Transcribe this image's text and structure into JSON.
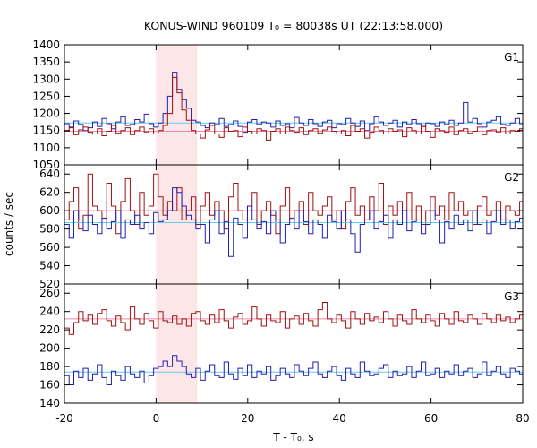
{
  "chart_data": {
    "type": "line",
    "title": "KONUS-WIND 960109 T₀ = 80038s UT (22:13:58.000)",
    "xlabel": "T - T₀, s",
    "ylabel": "counts / sec",
    "xlim": [
      -20,
      80
    ],
    "x_ticks": [
      "-20",
      "0",
      "20",
      "40",
      "60",
      "80"
    ],
    "highlight_interval": [
      0,
      9
    ],
    "bin_width": 1.024,
    "colors": {
      "blue": "#2020b0",
      "red": "#a01010",
      "blue_background": "#66ccee",
      "red_background": "#ee88aa",
      "highlight": "#fde6e8"
    },
    "panels": [
      {
        "label": "G1",
        "ylim": [
          1050,
          1400
        ],
        "y_ticks": [
          1050,
          1100,
          1150,
          1200,
          1250,
          1300,
          1350,
          1400
        ],
        "series": [
          {
            "color": "blue",
            "background": 1172,
            "x0": -20,
            "values": [
              1170,
              1160,
              1178,
              1168,
              1150,
              1158,
              1175,
              1162,
              1185,
              1170,
              1155,
              1175,
              1190,
              1165,
              1168,
              1182,
              1175,
              1198,
              1170,
              1160,
              1172,
              1200,
              1250,
              1320,
              1270,
              1240,
              1215,
              1180,
              1175,
              1165,
              1158,
              1172,
              1168,
              1185,
              1162,
              1168,
              1178,
              1162,
              1145,
              1175,
              1182,
              1168,
              1175,
              1172,
              1160,
              1178,
              1165,
              1170,
              1158,
              1188,
              1172,
              1165,
              1182,
              1170,
              1162,
              1175,
              1180,
              1158,
              1170,
              1168,
              1185,
              1172,
              1162,
              1178,
              1150,
              1170,
              1190,
              1175,
              1165,
              1172,
              1180,
              1160,
              1175,
              1168,
              1182,
              1170,
              1162,
              1172,
              1170,
              1162,
              1175,
              1168,
              1180,
              1165,
              1172,
              1232,
              1175,
              1185,
              1170,
              1160,
              1175,
              1180,
              1190,
              1168,
              1165,
              1172,
              1185,
              1170
            ]
          },
          {
            "color": "red",
            "background": 1148,
            "x0": -20,
            "values": [
              1148,
              1158,
              1138,
              1152,
              1160,
              1145,
              1140,
              1155,
              1135,
              1148,
              1165,
              1142,
              1150,
              1158,
              1138,
              1150,
              1160,
              1146,
              1155,
              1140,
              1150,
              1165,
              1200,
              1305,
              1260,
              1210,
              1180,
              1150,
              1140,
              1128,
              1152,
              1165,
              1140,
              1130,
              1158,
              1148,
              1150,
              1132,
              1160,
              1148,
              1140,
              1155,
              1150,
              1122,
              1148,
              1155,
              1140,
              1160,
              1150,
              1145,
              1158,
              1138,
              1150,
              1155,
              1142,
              1152,
              1160,
              1148,
              1140,
              1150,
              1135,
              1165,
              1148,
              1155,
              1128,
              1145,
              1160,
              1150,
              1140,
              1155,
              1148,
              1152,
              1132,
              1158,
              1150,
              1140,
              1162,
              1148,
              1130,
              1155,
              1150,
              1145,
              1160,
              1138,
              1150,
              1155,
              1142,
              1148,
              1160,
              1138,
              1150,
              1152,
              1146,
              1158,
              1140,
              1150,
              1148,
              1155
            ]
          }
        ]
      },
      {
        "label": "G2",
        "ylim": [
          520,
          650
        ],
        "y_ticks": [
          520,
          540,
          560,
          580,
          600,
          620,
          640
        ],
        "series": [
          {
            "color": "red",
            "background": 600,
            "x0": -20,
            "values": [
              590,
              610,
              625,
              580,
              595,
              640,
              605,
              600,
              590,
              630,
              605,
              575,
              610,
              635,
              600,
              585,
              620,
              595,
              605,
              640,
              615,
              595,
              610,
              600,
              625,
              590,
              600,
              615,
              585,
              605,
              620,
              595,
              610,
              600,
              580,
              615,
              630,
              600,
              590,
              605,
              620,
              585,
              600,
              610,
              595,
              575,
              605,
              625,
              590,
              600,
              610,
              585,
              620,
              600,
              595,
              605,
              615,
              590,
              600,
              580,
              610,
              625,
              595,
              605,
              590,
              615,
              600,
              630,
              585,
              605,
              595,
              610,
              600,
              620,
              590,
              605,
              585,
              600,
              615,
              595,
              605,
              590,
              620,
              600,
              610,
              595,
              600,
              585,
              605,
              615,
              595,
              600,
              610,
              590,
              605,
              600,
              595,
              610
            ]
          },
          {
            "color": "blue",
            "background": 587,
            "x0": -20,
            "values": [
              585,
              570,
              600,
              590,
              578,
              595,
              585,
              575,
              592,
              580,
              588,
              600,
              570,
              590,
              585,
              595,
              580,
              587,
              575,
              598,
              588,
              590,
              600,
              625,
              620,
              605,
              595,
              590,
              580,
              585,
              565,
              590,
              600,
              575,
              588,
              550,
              592,
              585,
              570,
              605,
              590,
              580,
              588,
              575,
              600,
              590,
              565,
              585,
              592,
              580,
              600,
              588,
              575,
              590,
              585,
              570,
              595,
              588,
              580,
              600,
              590,
              575,
              555,
              585,
              590,
              600,
              580,
              588,
              595,
              570,
              590,
              585,
              600,
              578,
              588,
              590,
              575,
              585,
              600,
              590,
              565,
              588,
              580,
              595,
              585,
              590,
              578,
              600,
              585,
              590,
              575,
              588,
              600,
              585,
              590,
              580,
              588,
              592
            ]
          }
        ]
      },
      {
        "label": "G3",
        "ylim": [
          140,
          270
        ],
        "y_ticks": [
          140,
          160,
          180,
          200,
          220,
          240,
          260
        ],
        "series": [
          {
            "color": "red",
            "background": 232,
            "x0": -20,
            "values": [
              222,
              215,
              228,
              240,
              230,
              236,
              226,
              238,
              242,
              230,
              224,
              235,
              228,
              220,
              245,
              232,
              226,
              238,
              230,
              222,
              240,
              230,
              228,
              235,
              226,
              232,
              224,
              238,
              240,
              230,
              226,
              236,
              228,
              242,
              230,
              222,
              234,
              238,
              226,
              230,
              245,
              232,
              224,
              236,
              230,
              228,
              240,
              222,
              232,
              235,
              226,
              238,
              230,
              224,
              242,
              250,
              232,
              228,
              236,
              230,
              222,
              240,
              232,
              226,
              238,
              230,
              234,
              228,
              240,
              232,
              224,
              236,
              230,
              226,
              242,
              232,
              228,
              236,
              230,
              224,
              238,
              232,
              226,
              240,
              230,
              228,
              236,
              232,
              226,
              238,
              232,
              228,
              236,
              230,
              234,
              228,
              232,
              236
            ]
          },
          {
            "color": "blue",
            "background": 174,
            "x0": -20,
            "values": [
              170,
              160,
              175,
              168,
              178,
              165,
              172,
              182,
              168,
              160,
              175,
              170,
              165,
              180,
              172,
              168,
              175,
              162,
              170,
              178,
              180,
              186,
              180,
              192,
              186,
              180,
              172,
              168,
              178,
              165,
              175,
              182,
              170,
              168,
              185,
              172,
              166,
              178,
              170,
              182,
              168,
              175,
              172,
              180,
              165,
              170,
              178,
              172,
              168,
              182,
              175,
              170,
              178,
              185,
              172,
              168,
              175,
              180,
              170,
              165,
              178,
              172,
              168,
              185,
              175,
              170,
              172,
              178,
              182,
              168,
              175,
              170,
              172,
              180,
              168,
              175,
              185,
              170,
              172,
              178,
              168,
              175,
              172,
              182,
              170,
              175,
              178,
              168,
              172,
              185,
              170,
              175,
              180,
              172,
              168,
              178,
              175,
              172
            ]
          }
        ]
      }
    ]
  }
}
